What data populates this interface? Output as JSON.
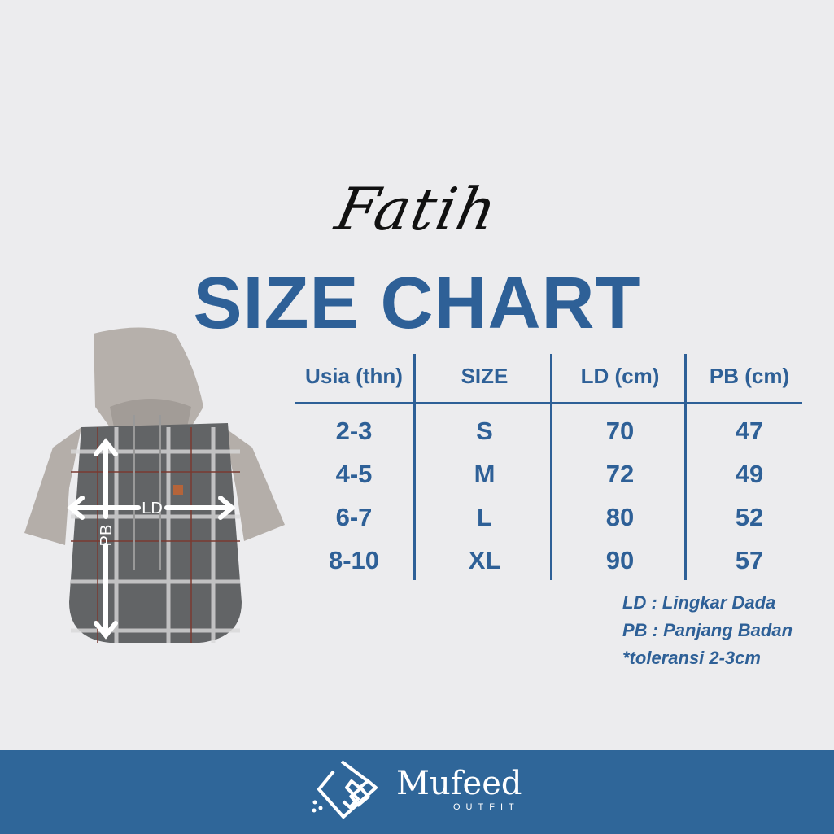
{
  "header": {
    "script_title": "Fatih",
    "title": "SIZE CHART"
  },
  "table": {
    "columns": [
      "Usia (thn)",
      "SIZE",
      "LD (cm)",
      "PB (cm)"
    ],
    "rows": [
      [
        "2-3",
        "S",
        "70",
        "47"
      ],
      [
        "4-5",
        "M",
        "72",
        "49"
      ],
      [
        "6-7",
        "L",
        "80",
        "52"
      ],
      [
        "8-10",
        "XL",
        "90",
        "57"
      ]
    ]
  },
  "notes": [
    "LD : Lingkar Dada",
    "PB : Panjang Badan",
    "*toleransi 2-3cm"
  ],
  "product_image": {
    "ld_label": "LD",
    "pb_label": "PB"
  },
  "footer": {
    "brand": "Mufeed",
    "brand_sub": "OUTFIT"
  },
  "colors": {
    "accent": "#2e6097",
    "footer": "#2f6699",
    "background": "#ececee"
  }
}
